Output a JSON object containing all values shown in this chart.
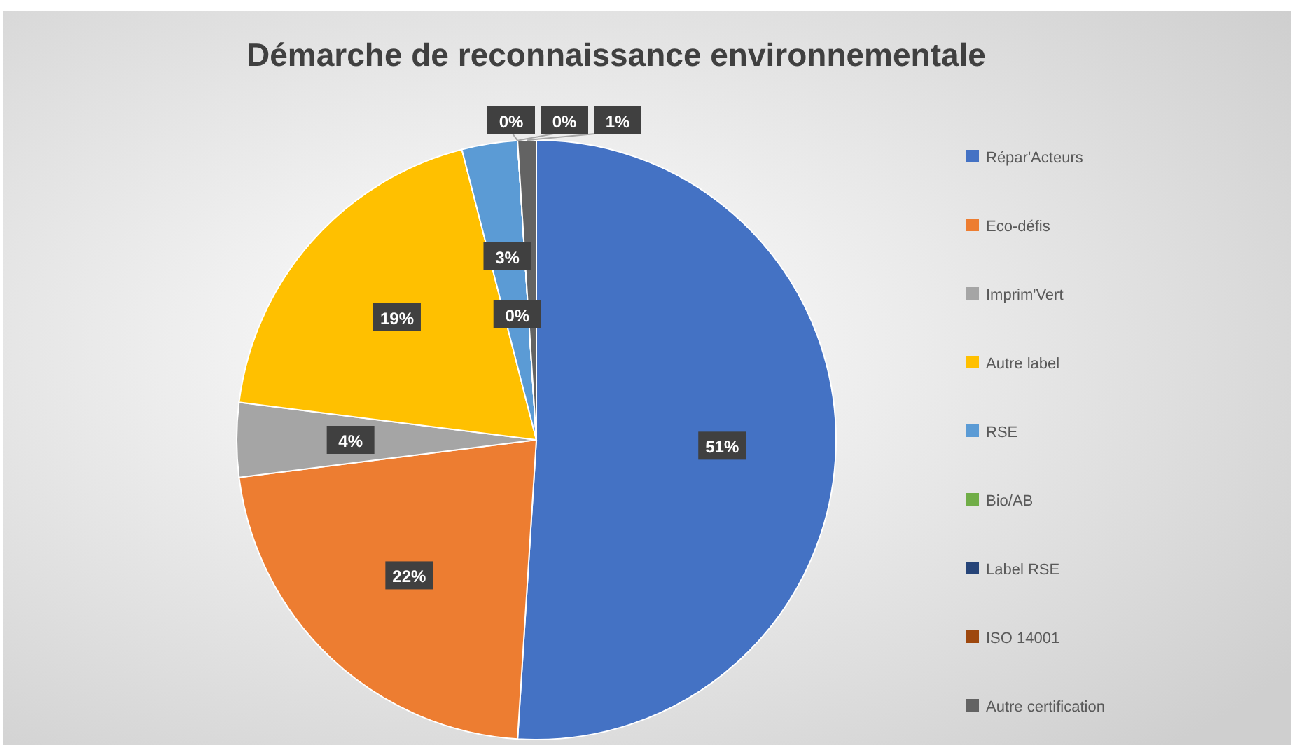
{
  "chart_data": {
    "type": "pie",
    "title": "Démarche de reconnaissance environnementale",
    "categories": [
      "Répar'Acteurs",
      "Eco-défis",
      "Imprim'Vert",
      "Autre label",
      "RSE",
      "Bio/AB",
      "Label RSE",
      "ISO 14001",
      "Autre certification"
    ],
    "values": [
      51,
      22,
      4,
      19,
      3,
      0,
      0,
      0,
      1
    ],
    "colors": [
      "#4472c4",
      "#ed7d31",
      "#a5a5a5",
      "#ffc000",
      "#5b9bd5",
      "#70ad47",
      "#264478",
      "#9e480e",
      "#636363"
    ],
    "value_labels": [
      "51%",
      "22%",
      "4%",
      "19%",
      "3%",
      "0%",
      "0%",
      "0%",
      "1%"
    ],
    "legend": "right"
  }
}
